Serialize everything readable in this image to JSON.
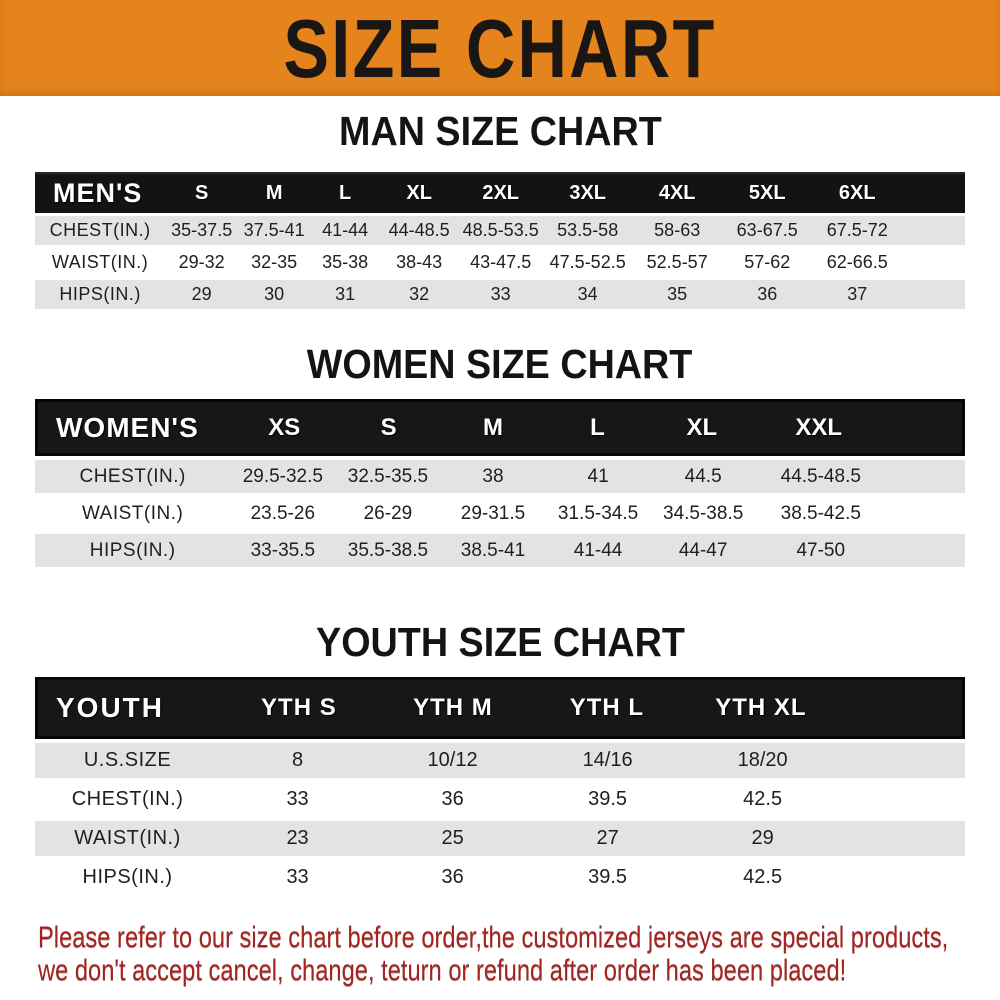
{
  "banner": {
    "title": "SIZE CHART",
    "background_color": "#E5831D",
    "text_color": "#191613"
  },
  "colors": {
    "header_black": "#141313",
    "row_gray": "#e3e3e3",
    "row_white": "#ffffff",
    "footer_red": "#A3241F"
  },
  "sections": [
    {
      "title": "MAN SIZE CHART",
      "header_label": "MEN'S",
      "columns": [
        "S",
        "M",
        "L",
        "XL",
        "2XL",
        "3XL",
        "4XL",
        "5XL",
        "6XL"
      ],
      "rows": [
        {
          "label": "CHEST(IN.)",
          "values": [
            "35-37.5",
            "37.5-41",
            "41-44",
            "44-48.5",
            "48.5-53.5",
            "53.5-58",
            "58-63",
            "63-67.5",
            "67.5-72"
          ]
        },
        {
          "label": "WAIST(IN.)",
          "values": [
            "29-32",
            "32-35",
            "35-38",
            "38-43",
            "43-47.5",
            "47.5-52.5",
            "52.5-57",
            "57-62",
            "62-66.5"
          ]
        },
        {
          "label": "HIPS(IN.)",
          "values": [
            "29",
            "30",
            "31",
            "32",
            "33",
            "34",
            "35",
            "36",
            "37"
          ]
        }
      ]
    },
    {
      "title": "WOMEN SIZE CHART",
      "header_label": "WOMEN'S",
      "columns": [
        "XS",
        "S",
        "M",
        "L",
        "XL",
        "XXL"
      ],
      "rows": [
        {
          "label": "CHEST(IN.)",
          "values": [
            "29.5-32.5",
            "32.5-35.5",
            "38",
            "41",
            "44.5",
            "44.5-48.5"
          ]
        },
        {
          "label": "WAIST(IN.)",
          "values": [
            "23.5-26",
            "26-29",
            "29-31.5",
            "31.5-34.5",
            "34.5-38.5",
            "38.5-42.5"
          ]
        },
        {
          "label": "HIPS(IN.)",
          "values": [
            "33-35.5",
            "35.5-38.5",
            "38.5-41",
            "41-44",
            "44-47",
            "47-50"
          ]
        }
      ]
    },
    {
      "title": "YOUTH SIZE CHART",
      "header_label": "YOUTH",
      "columns": [
        "YTH S",
        "YTH M",
        "YTH L",
        "YTH XL"
      ],
      "rows": [
        {
          "label": "U.S.SIZE",
          "values": [
            "8",
            "10/12",
            "14/16",
            "18/20"
          ]
        },
        {
          "label": "CHEST(IN.)",
          "values": [
            "33",
            "36",
            "39.5",
            "42.5"
          ]
        },
        {
          "label": "WAIST(IN.)",
          "values": [
            "23",
            "25",
            "27",
            "29"
          ]
        },
        {
          "label": "HIPS(IN.)",
          "values": [
            "33",
            "36",
            "39.5",
            "42.5"
          ]
        }
      ]
    }
  ],
  "footer": {
    "line1": "Please refer to our size chart before order,the customized jerseys are special products,",
    "line2": "we don't accept cancel, change, teturn or refund after order has been placed!"
  }
}
